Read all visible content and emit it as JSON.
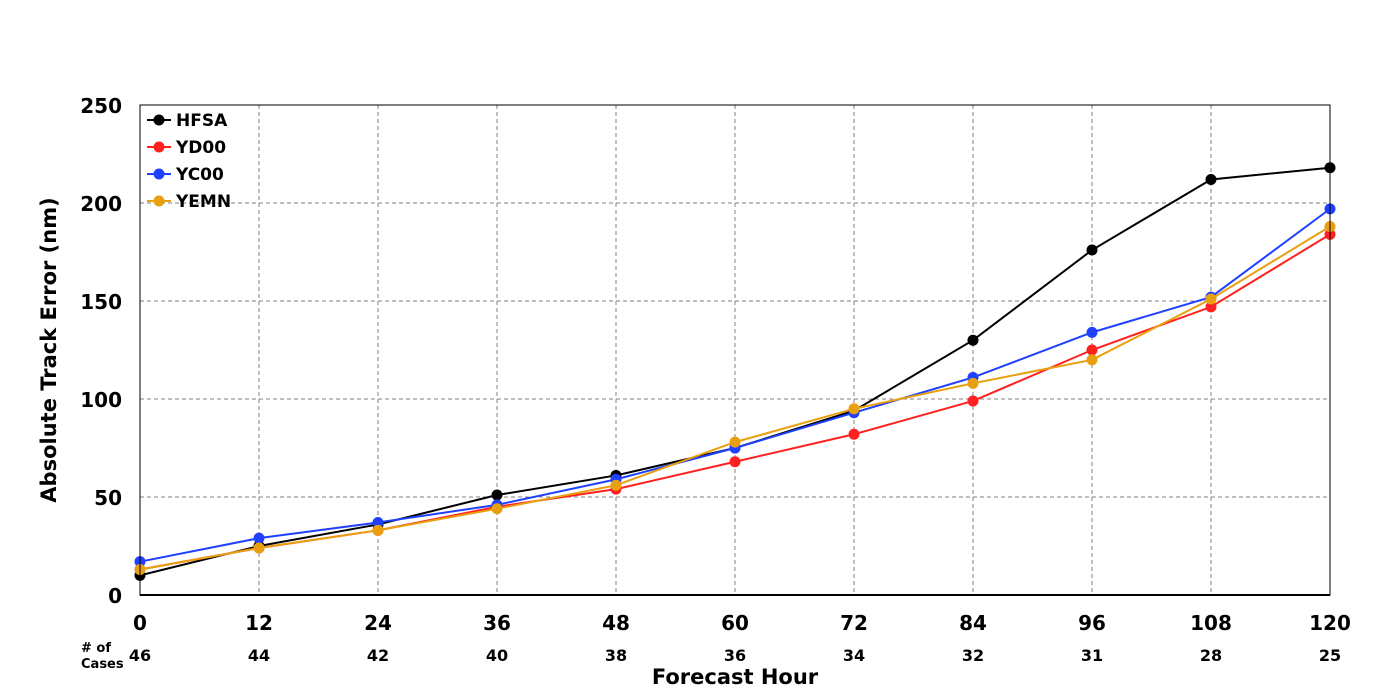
{
  "chart_data": {
    "type": "line",
    "title": "",
    "xlabel": "Forecast Hour",
    "ylabel": "Absolute Track Error (nm)",
    "x": [
      0,
      12,
      24,
      36,
      48,
      60,
      72,
      84,
      96,
      108,
      120
    ],
    "xlim": [
      0,
      120
    ],
    "ylim": [
      0,
      250
    ],
    "yticks": [
      0,
      50,
      100,
      150,
      200,
      250
    ],
    "grid": true,
    "legend_position": "top-left",
    "cases_label": "# of Cases",
    "cases_label_lines": [
      "# of",
      "Cases"
    ],
    "cases": [
      46,
      44,
      42,
      40,
      38,
      36,
      34,
      32,
      31,
      28,
      25
    ],
    "series": [
      {
        "name": "HFSA",
        "color": "#000000",
        "values": [
          10,
          25,
          36,
          51,
          61,
          75,
          94,
          130,
          176,
          212,
          218
        ]
      },
      {
        "name": "YD00",
        "color": "#ff2020",
        "values": [
          13,
          24,
          33,
          45,
          54,
          68,
          82,
          99,
          125,
          147,
          184
        ]
      },
      {
        "name": "YC00",
        "color": "#2040ff",
        "values": [
          17,
          29,
          37,
          46,
          59,
          75,
          93,
          111,
          134,
          152,
          197
        ]
      },
      {
        "name": "YEMN",
        "color": "#e8a010",
        "values": [
          13,
          24,
          33,
          44,
          56,
          78,
          95,
          108,
          120,
          151,
          188
        ]
      }
    ]
  }
}
